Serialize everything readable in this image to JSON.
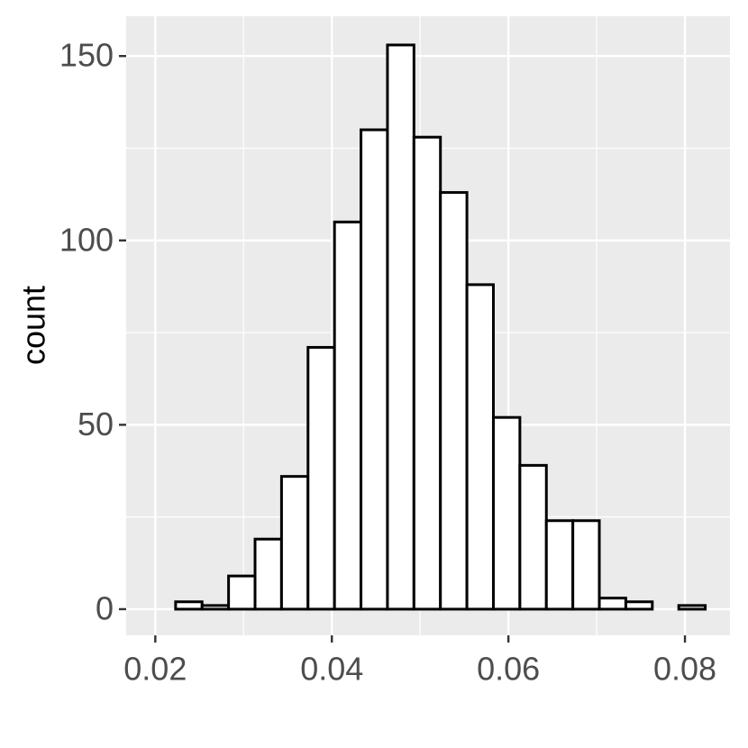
{
  "chart_data": {
    "type": "histogram",
    "y_label": "count",
    "bins": [
      0.0223,
      0.0253,
      0.0283,
      0.0313,
      0.0343,
      0.0373,
      0.0403,
      0.0433,
      0.0463,
      0.0493,
      0.0523,
      0.0553,
      0.0583,
      0.0613,
      0.0643,
      0.0673,
      0.0703,
      0.0733,
      0.0763,
      0.0793,
      0.0823
    ],
    "values": [
      2,
      1,
      9,
      19,
      36,
      71,
      105,
      130,
      153,
      128,
      113,
      88,
      52,
      39,
      24,
      24,
      3,
      2,
      0,
      1
    ],
    "color": "#ffffff",
    "edge_color": "#000000",
    "xlim": [
      0.0167,
      0.0851
    ],
    "xticks": [
      0.02,
      0.04,
      0.06,
      0.08
    ],
    "ylim": [
      -7.1,
      160.8
    ],
    "yticks": [
      0,
      50,
      100,
      150
    ],
    "grid": true
  }
}
